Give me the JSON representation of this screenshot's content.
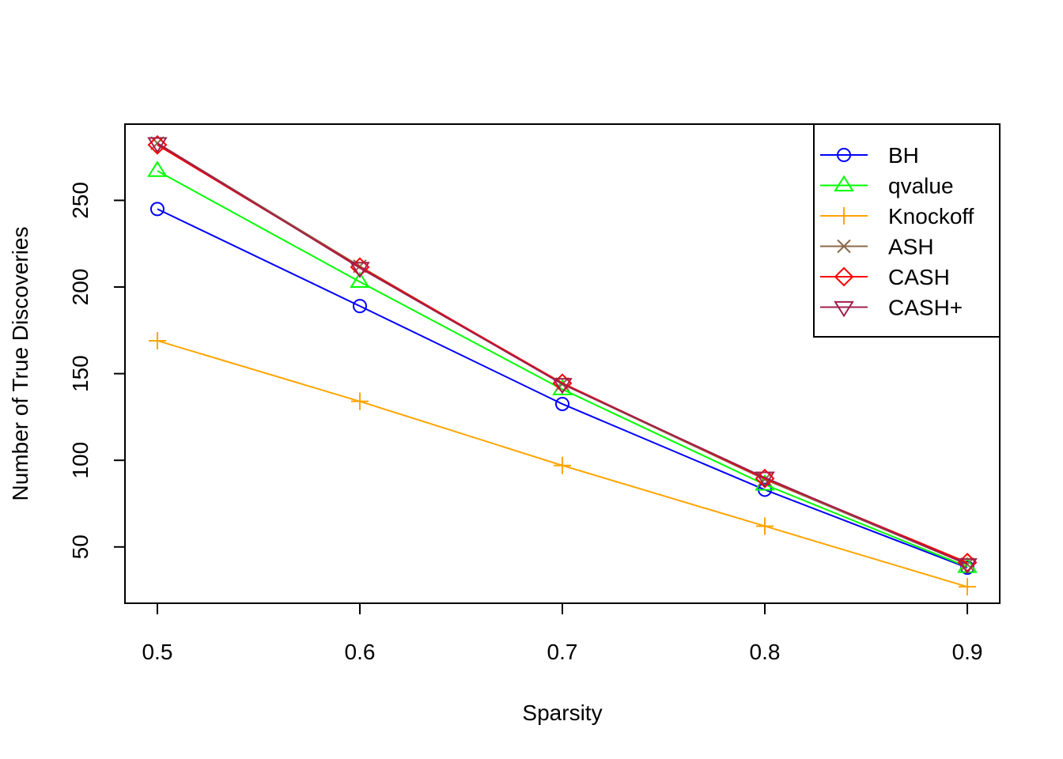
{
  "chart_data": {
    "type": "line",
    "title": "",
    "xlabel": "Sparsity",
    "ylabel": "Number of True Discoveries",
    "x": [
      0.5,
      0.6,
      0.7,
      0.8,
      0.9
    ],
    "x_tick_labels": [
      "0.5",
      "0.6",
      "0.7",
      "0.8",
      "0.9"
    ],
    "xlim": [
      0.484,
      0.916
    ],
    "ylim": [
      17.5,
      294
    ],
    "y_ticks": [
      50,
      100,
      150,
      200,
      250
    ],
    "y_tick_labels": [
      "50",
      "100",
      "150",
      "200",
      "250"
    ],
    "grid": false,
    "legend_position": "top-right",
    "series": [
      {
        "name": "BH",
        "color": "#0000FF",
        "marker": "circle",
        "values": [
          245,
          189,
          132.5,
          83,
          38
        ]
      },
      {
        "name": "qvalue",
        "color": "#00FF00",
        "marker": "triangle-up",
        "values": [
          267,
          203,
          141,
          86,
          38.5
        ]
      },
      {
        "name": "Knockoff",
        "color": "#FFA500",
        "marker": "plus",
        "values": [
          169,
          134,
          97,
          62,
          27
        ]
      },
      {
        "name": "ASH",
        "color": "#8B6A4A",
        "marker": "cross",
        "values": [
          283,
          212,
          144,
          89,
          40
        ]
      },
      {
        "name": "CASH",
        "color": "#FF0000",
        "marker": "diamond",
        "values": [
          282,
          211.5,
          144.5,
          89.5,
          41
        ]
      },
      {
        "name": "CASH+",
        "color": "#A0204A",
        "marker": "triangle-down",
        "values": [
          283,
          211,
          144,
          90,
          40
        ]
      }
    ]
  }
}
